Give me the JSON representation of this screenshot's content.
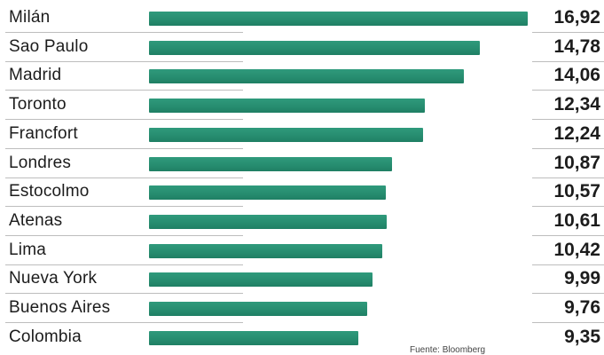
{
  "chart_data": {
    "type": "bar",
    "orientation": "horizontal",
    "categories": [
      "Milán",
      "Sao Paulo",
      "Madrid",
      "Toronto",
      "Francfort",
      "Londres",
      "Estocolmo",
      "Atenas",
      "Lima",
      "Nueva York",
      "Buenos Aires",
      "Colombia"
    ],
    "values": [
      16.92,
      14.78,
      14.06,
      12.34,
      12.24,
      10.87,
      10.57,
      10.61,
      10.42,
      9.99,
      9.76,
      9.35
    ],
    "value_labels": [
      "16,92",
      "14,78",
      "14,06",
      "12,34",
      "12,24",
      "10,87",
      "10,57",
      "10,61",
      "10,42",
      "9,99",
      "9,76",
      "9,35"
    ],
    "xlim": [
      0,
      18
    ],
    "grid": false,
    "bar_color": "#2a9072",
    "source": "Fuente: Bloomberg"
  }
}
